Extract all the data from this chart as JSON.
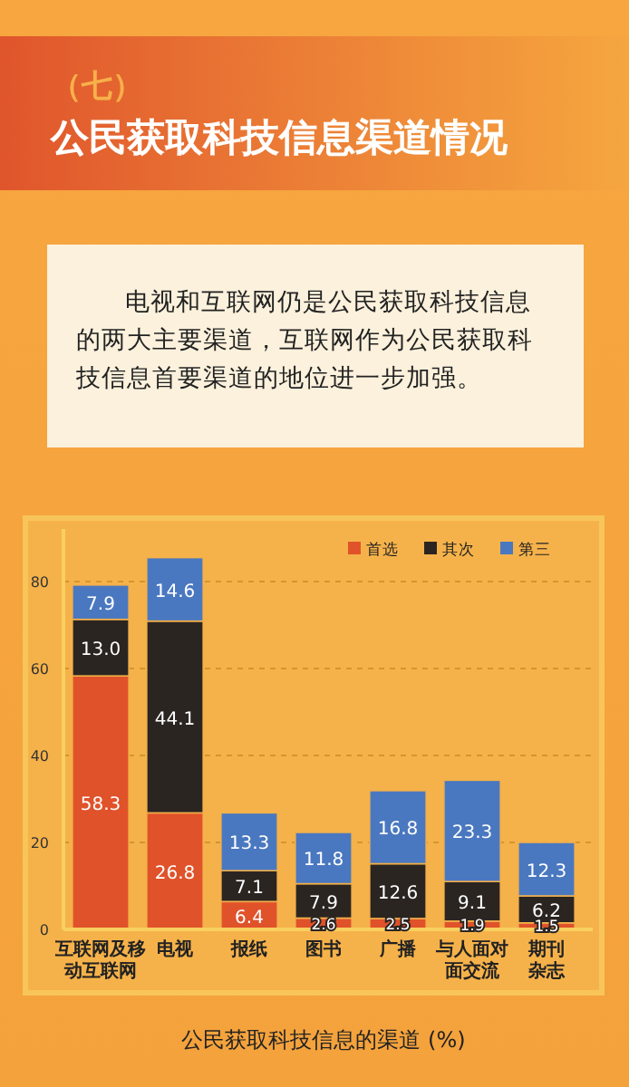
{
  "chart_data": {
    "type": "bar",
    "stacked": true,
    "subtitle": "（七）",
    "title": "公民获取科技信息渠道情况",
    "annotations": [
      "电视和互联网仍是公民获取科技信息的两大主要渠道，互联网作为公民获取科技信息首要渠道的地位进一步加强。"
    ],
    "xlabel": "公民获取科技信息的渠道 (%)",
    "categories": [
      "互联网及移动互联网",
      "电视",
      "报纸",
      "图书",
      "广播",
      "与人面对面交流",
      "期刊杂志"
    ],
    "series": [
      {
        "name": "首选",
        "color": "#e0522a",
        "values": [
          58.3,
          26.8,
          6.4,
          2.6,
          2.5,
          1.9,
          1.5
        ],
        "value_labels": [
          "58.3",
          "26.8",
          "6.4",
          "2.6",
          "2.5",
          "1.9",
          "1.5"
        ]
      },
      {
        "name": "其次",
        "color": "#2b2522",
        "values": [
          13.0,
          44.1,
          7.1,
          7.9,
          12.6,
          9.1,
          6.2
        ],
        "value_labels": [
          "13.0",
          "44.1",
          "7.1",
          "7.9",
          "12.6",
          "9.1",
          "6.2"
        ]
      },
      {
        "name": "第三",
        "color": "#4a78c0",
        "values": [
          7.9,
          14.6,
          13.3,
          11.8,
          16.8,
          23.3,
          12.3
        ],
        "value_labels": [
          "7.9",
          "14.6",
          "13.3",
          "11.8",
          "16.8",
          "23.3",
          "12.3"
        ]
      }
    ],
    "ylim": [
      0,
      90
    ],
    "yticks": [
      0,
      20,
      40,
      60,
      80
    ],
    "grid": "y",
    "legend": "top right"
  }
}
